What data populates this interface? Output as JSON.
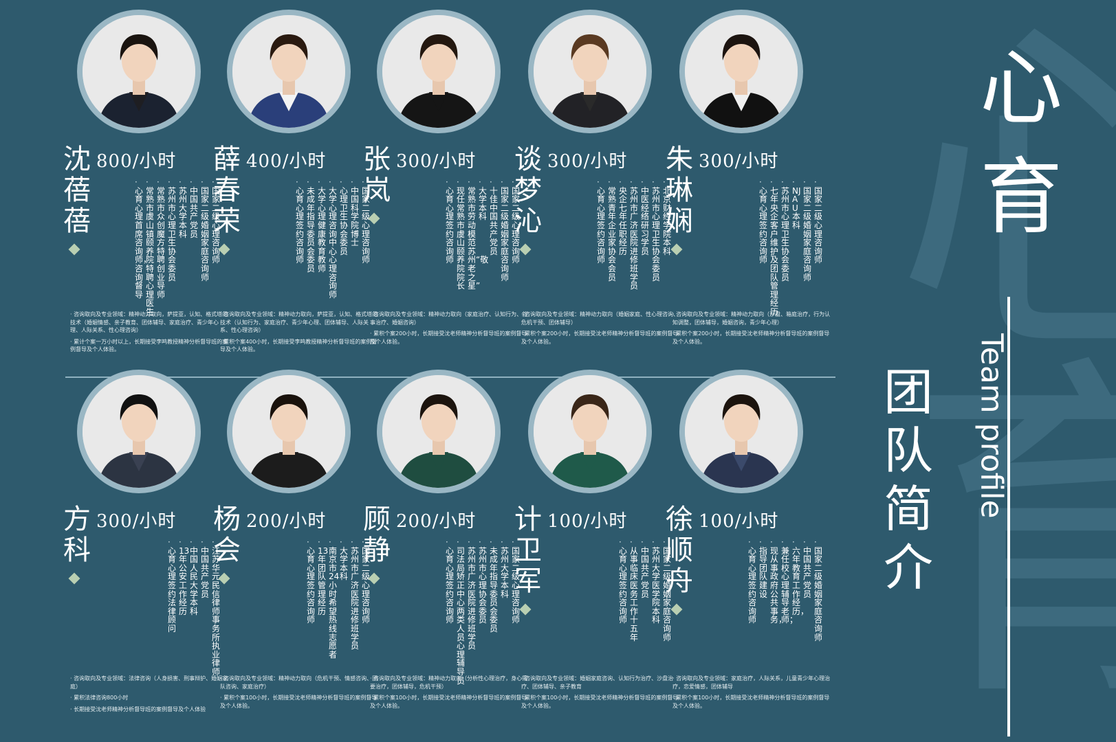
{
  "header": {
    "title_chars": [
      "心",
      "育"
    ],
    "subtitle_en": "Team profile",
    "subtitle_chars": [
      "团",
      "队",
      "简",
      "介"
    ]
  },
  "colors": {
    "background": "#2e5a6d",
    "ring": "#9ab7c4",
    "diamond": "#b9cfb2"
  },
  "members": [
    {
      "name_chars": [
        "沈",
        "蓓",
        "蓓"
      ],
      "rate": "800/小时",
      "credentials": [
        "国家二级心理咨询师",
        "国家二级婚姻家庭咨询师",
        "中国共产党员",
        "苏州大学本科",
        "苏州市心理卫生协会委员",
        "常熟市众创魔方特聘创业导师",
        "常熟市虞山镇颐养院特聘心理医生",
        "心育心理首席咨询师，咨询督导"
      ],
      "detail_1": "咨询取向及专业领域：精神动力取向，萨提亚，认知、格式塔的技术（婚姻情感、亲子教育、团体辅导、家庭治疗、青少年心理、人际关系、性心理咨询）",
      "detail_2": "累计个案一万小时以上，长期接受李鸣教授精神分析督导班的案例督导及个人体验。"
    },
    {
      "name_chars": [
        "薛",
        "春",
        "荣"
      ],
      "rate": "400/小时",
      "credentials": [
        "国家二级心理咨询师",
        "中国科学院 博士",
        "心理卫生协会委员",
        "大学心理咨询中心 心理咨询师",
        "大学心理健康教育 教师",
        "未成年指导委员会委员",
        "心育心理签约咨询师"
      ],
      "detail_1": "咨询取向及专业领域：精神动力取向，萨提亚，认知、格式塔的技术（认知行为、家庭治疗、青少年心理、团体辅导、人际关系、性心理咨询）",
      "detail_2": "累积个案400小时，长期接受李鸣教授精神分析督导班的案例督导及个人体验。"
    },
    {
      "name_chars": [
        "张",
        "岚"
      ],
      "rate": "300/小时",
      "credentials": [
        "国家二级心理咨询师",
        "国家二级婚姻家庭咨询师",
        "十佳中国共产党员",
        "大学本科",
        "常熟市劳动模范 苏州“敬老之星”",
        "现任常熟市虞山颐养院院长",
        "心育心理签约咨询师"
      ],
      "detail_1": "咨询取向及专业领域：精神动力取向（家庭治疗、认知行为、叙事治疗、婚姻咨询）",
      "detail_2": "累积个案200小时，长期接受沈老师精神分析督导班的案例督导及个人体验。"
    },
    {
      "name_chars": [
        "谈",
        "梦",
        "沁"
      ],
      "rate": "300/小时",
      "credentials": [
        "北京财经学院本科",
        "苏州市心理卫生协会委员",
        "中医经络研习学员",
        "苏州市广济医院进修班学员",
        "央企七年任职经历",
        "常熟青年企业家协会会员",
        "心育心理签约咨询师"
      ],
      "detail_1": "咨询取向及专业领域：精神动力取向（婚姻家庭、性心理咨询、危机干预、团体辅导）",
      "detail_2": "累积个案200小时，长期接受沈老师精神分析督导班的案例督导及个人体验。"
    },
    {
      "name_chars": [
        "朱",
        "琳",
        "娴"
      ],
      "rate": "300/小时",
      "credentials": [
        "国家二级心理咨询师",
        "国家二级婚姻家庭咨询师",
        "NJAU本科",
        "苏州市心理卫生协会委员",
        "七年央企客户维护及团队管理经历",
        "心育心理签约咨询师"
      ],
      "detail_1": "咨询取向及专业领域：精神动力取向（沙盘、箱庭治疗，行为认知调整，团体辅导，婚姻咨询，青少年心理）",
      "detail_2": "累积个案200小时，长期接受沈老师精神分析督导班的案例督导及个人体验。"
    },
    {
      "name_chars": [
        "方",
        "科"
      ],
      "rate": "300/小时",
      "credentials": [
        "江苏华元民信律师事务所执业律师",
        "中国共产党员",
        "中国人民大学本科",
        "13年公安工作经历",
        "心育心理签约法律顾问"
      ],
      "detail_1": "咨询取向及专业领域：法律咨询（人身损害、刑事辩护、婚姻家庭）",
      "detail_2": "累积法律咨询800小时",
      "detail_3": "长期接受沈老师精神分析督导班的案例督导及个人体验"
    },
    {
      "name_chars": [
        "杨",
        "会"
      ],
      "rate": "200/小时",
      "credentials": [
        "国家二级心理咨询师",
        "苏州市广济医院进修班学员",
        "大学本科",
        "南京市24小时希望热线志愿者",
        "13年团队管理经历",
        "心育心理签约咨询师"
      ],
      "detail_1": "咨询取向及专业领域：精神动力取向（危机干预、情感咨询、团队咨询、家庭治疗）",
      "detail_2": "累积个案100小时，长期接受沈老师精神分析督导班的案例督导及个人体验。"
    },
    {
      "name_chars": [
        "顾",
        "静"
      ],
      "rate": "200/小时",
      "credentials": [
        "国家二级心理咨询师",
        "苏州大学本科",
        "未成年指导委员会委员",
        "苏州市心理协会委员",
        "苏州市广济医院进修班学员",
        "司法局矫正中心两类人员心理辅导员",
        "心育心理签约咨询师"
      ],
      "detail_1": "咨询取向及专业领域：精神动力取向（分析性心理治疗，身心需要治疗，团体辅导，危机干预）",
      "detail_2": "累积个案100小时，长期接受沈老师精神分析督导班的案例督导及个人体验。"
    },
    {
      "name_chars": [
        "计",
        "卫",
        "军"
      ],
      "rate": "100/小时",
      "credentials": [
        "国家二级婚姻家庭咨询师",
        "苏州大学医学院本科",
        "中国共产党员",
        "从事临床医务工作十五年",
        "心育心理签约咨询师"
      ],
      "detail_1": "咨询取向及专业领域：婚姻家庭咨询、认知行为治疗、沙盘治疗、团体辅导、亲子教育",
      "detail_2": "累积个案100小时，长期接受沈老师精神分析督导班的案例督导及个人体验。"
    },
    {
      "name_chars": [
        "徐",
        "顺",
        "舟"
      ],
      "rate": "100/小时",
      "credentials": [
        "国家二级婚姻家庭咨询师",
        "中国共产党员",
        "六年教育工作经历，",
        "兼任校心理辅导老师；",
        "现从事政府公共事务，",
        "指导团队建设",
        "心育心理签约咨询师"
      ],
      "detail_1": "咨询取向及专业领域：家庭治疗，人际关系，儿童青少年心理治疗，恋爱情感，团体辅导",
      "detail_2": "累积个案100小时，长期接受沈老师精神分析督导班的案例督导及个人体验。"
    }
  ]
}
